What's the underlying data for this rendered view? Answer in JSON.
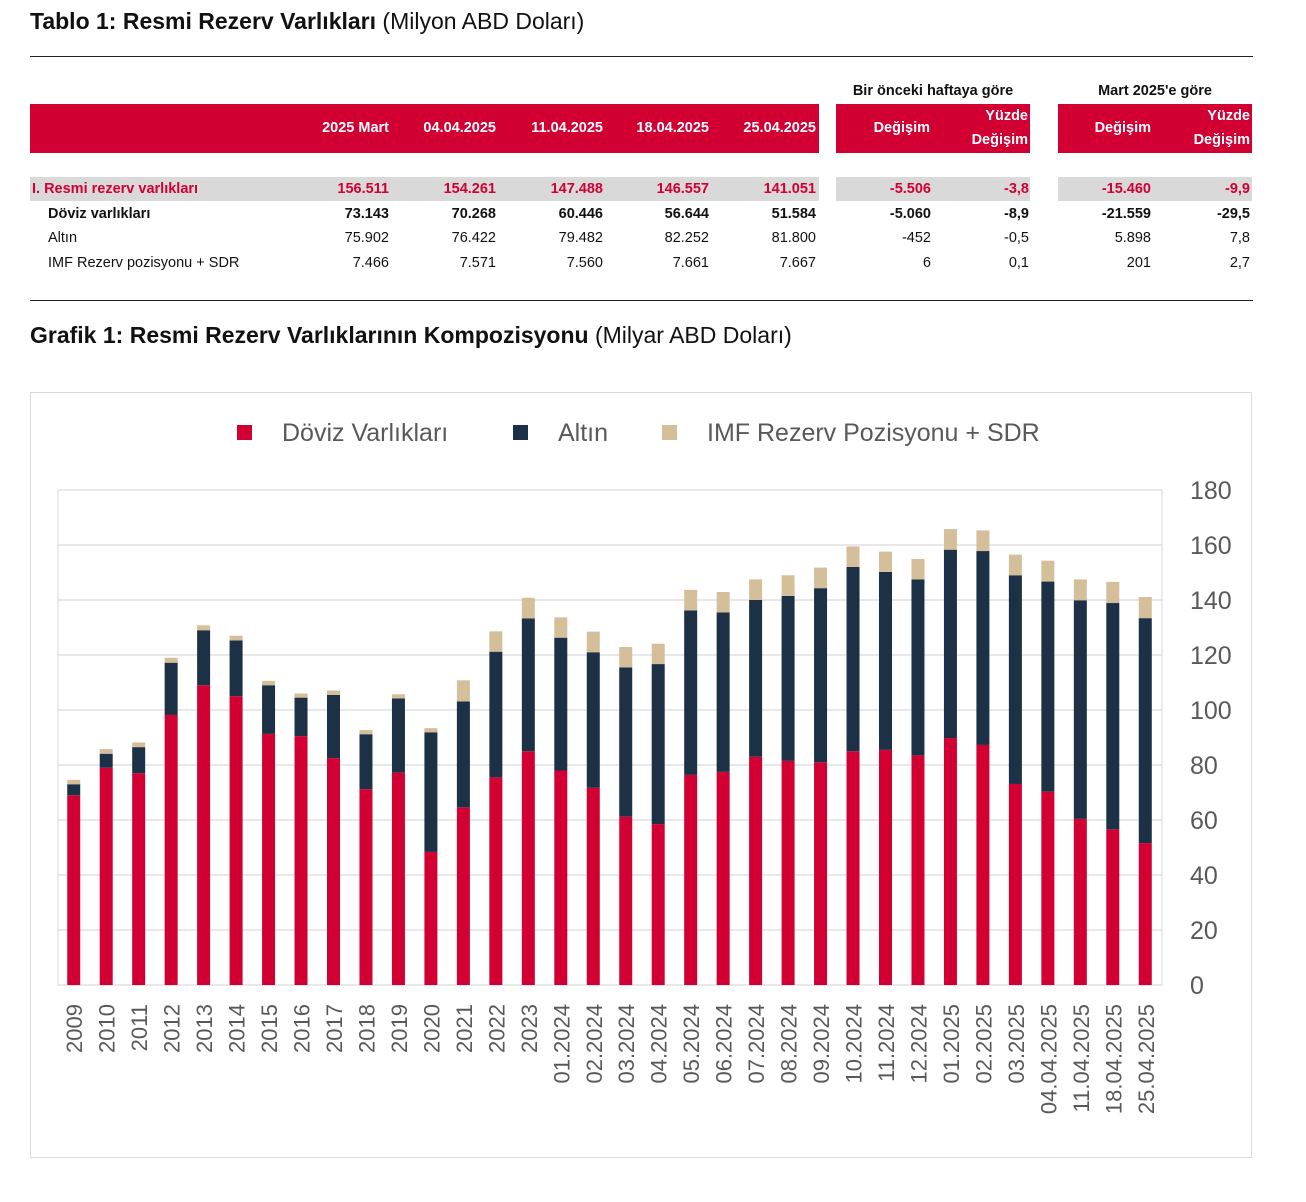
{
  "table": {
    "title_bold": "Tablo 1: Resmi Rezerv Varlıkları",
    "title_unit": "(Milyon ABD Doları)",
    "group_headers": [
      "Bir önceki haftaya göre",
      "Mart 2025'e göre"
    ],
    "columns": [
      "2025 Mart",
      "04.04.2025",
      "11.04.2025",
      "18.04.2025",
      "25.04.2025",
      "Değişim",
      "Yüzde Değişim",
      "Değişim",
      "Yüzde Değişim"
    ],
    "col_labels": {
      "c0": "2025 Mart",
      "c1": "04.04.2025",
      "c2": "11.04.2025",
      "c3": "18.04.2025",
      "c4": "25.04.2025",
      "w_change": "Değişim",
      "w_pct_1": "Yüzde",
      "w_pct_2": "Değişim",
      "m_change": "Değişim",
      "m_pct_1": "Yüzde",
      "m_pct_2": "Değişim"
    },
    "rows": [
      {
        "label": "I. Resmi rezerv varlıkları",
        "values": [
          "156.511",
          "154.261",
          "147.488",
          "146.557",
          "141.051"
        ],
        "week_change": "-5.506",
        "week_pct": "-3,8",
        "march_change": "-15.460",
        "march_pct": "-9,9"
      },
      {
        "label": "Döviz varlıkları",
        "values": [
          "73.143",
          "70.268",
          "60.446",
          "56.644",
          "51.584"
        ],
        "week_change": "-5.060",
        "week_pct": "-8,9",
        "march_change": "-21.559",
        "march_pct": "-29,5"
      },
      {
        "label": "Altın",
        "values": [
          "75.902",
          "76.422",
          "79.482",
          "82.252",
          "81.800"
        ],
        "week_change": "-452",
        "week_pct": "-0,5",
        "march_change": "5.898",
        "march_pct": "7,8"
      },
      {
        "label": "IMF Rezerv pozisyonu + SDR",
        "values": [
          "7.466",
          "7.571",
          "7.560",
          "7.661",
          "7.667"
        ],
        "week_change": "6",
        "week_pct": "0,1",
        "march_change": "201",
        "march_pct": "2,7"
      }
    ]
  },
  "colors": {
    "accent_red": "#d20032",
    "navy": "#1d3146",
    "tan": "#d5bf9a",
    "row_shade": "#d9d9d9",
    "grid": "#d9d9d9",
    "axis_text": "#595959"
  },
  "chart_title": {
    "bold": "Grafik 1: Resmi Rezerv Varlıklarının Kompozisyonu",
    "unit": "(Milyar ABD Doları)"
  },
  "chart_data": {
    "type": "bar",
    "stacked": true,
    "title": "Grafik 1: Resmi Rezerv Varlıklarının Kompozisyonu (Milyar ABD Doları)",
    "xlabel": "",
    "ylabel": "",
    "ylim": [
      0,
      180
    ],
    "yticks": [
      0,
      20,
      40,
      60,
      80,
      100,
      120,
      140,
      160,
      180
    ],
    "y_axis_side": "right",
    "grid": true,
    "legend_position": "top",
    "categories": [
      "2009",
      "2010",
      "2011",
      "2012",
      "2013",
      "2014",
      "2015",
      "2016",
      "2017",
      "2018",
      "2019",
      "2020",
      "2021",
      "2022",
      "2023",
      "01.2024",
      "02.2024",
      "03.2024",
      "04.2024",
      "05.2024",
      "06.2024",
      "07.2024",
      "08.2024",
      "09.2024",
      "10.2024",
      "11.2024",
      "12.2024",
      "01.2025",
      "02.2025",
      "03.2025",
      "04.04.2025",
      "11.04.2025",
      "18.04.2025",
      "25.04.2025"
    ],
    "series": [
      {
        "name": "Döviz Varlıkları",
        "color": "#d20032",
        "values": [
          69.0,
          79.0,
          77.0,
          98.2,
          109.0,
          105.0,
          91.3,
          90.5,
          82.5,
          71.2,
          77.2,
          48.4,
          64.6,
          75.5,
          85.0,
          78.0,
          71.7,
          61.2,
          58.5,
          76.4,
          77.5,
          83.0,
          81.5,
          81.0,
          85.0,
          85.5,
          83.5,
          89.8,
          87.3,
          73.1,
          70.3,
          60.4,
          56.6,
          51.6
        ]
      },
      {
        "name": "Altın",
        "color": "#1d3146",
        "values": [
          4.0,
          5.1,
          9.5,
          19.0,
          20.0,
          20.3,
          17.7,
          14.0,
          23.0,
          20.0,
          27.0,
          43.5,
          38.5,
          45.7,
          48.3,
          48.3,
          49.3,
          54.3,
          58.2,
          59.8,
          58.0,
          57.0,
          60.0,
          63.3,
          67.0,
          64.7,
          64.0,
          68.5,
          70.5,
          75.9,
          76.4,
          79.5,
          82.3,
          81.8
        ]
      },
      {
        "name": "IMF Rezerv Pozisyonu + SDR",
        "color": "#d5bf9a",
        "values": [
          1.6,
          1.7,
          1.7,
          1.8,
          1.8,
          1.7,
          1.6,
          1.5,
          1.6,
          1.5,
          1.5,
          1.5,
          7.7,
          7.4,
          7.5,
          7.4,
          7.5,
          7.4,
          7.4,
          7.5,
          7.4,
          7.5,
          7.5,
          7.5,
          7.5,
          7.4,
          7.4,
          7.5,
          7.5,
          7.5,
          7.6,
          7.6,
          7.7,
          7.7
        ]
      }
    ]
  }
}
